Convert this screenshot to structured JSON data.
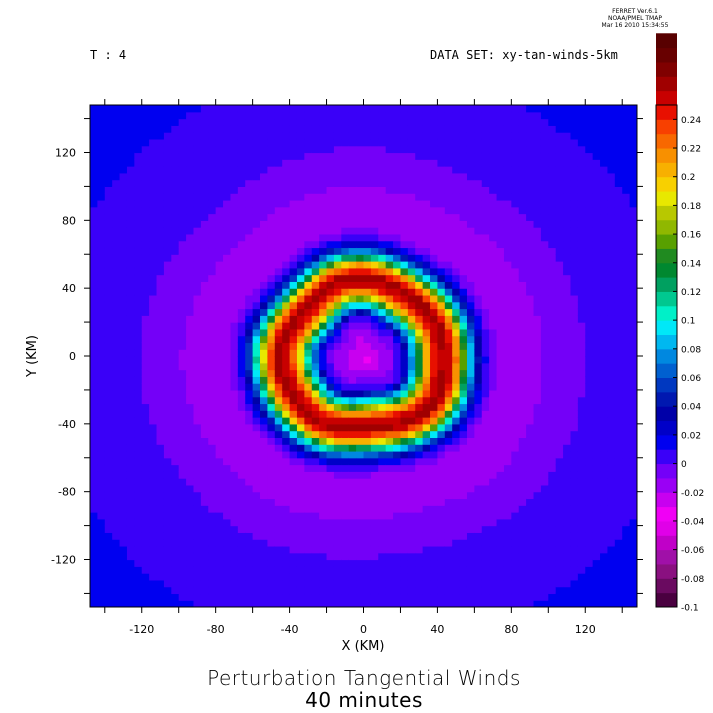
{
  "header": {
    "ferret_lines": [
      "FERRET  Ver.6.1",
      "NOAA/PMEL TMAP",
      "Mar 16 2010 15:34:55"
    ],
    "time_label": "T : 4",
    "dataset_label": "DATA SET: xy-tan-winds-5km"
  },
  "chart_data": {
    "type": "heatmap",
    "title": "Perturbation Tangential Winds",
    "subtitle": "40 minutes",
    "xlabel": "X (KM)",
    "ylabel": "Y (KM)",
    "xlim": [
      -148,
      148
    ],
    "ylim": [
      -148,
      148
    ],
    "xticks": [
      -120,
      -80,
      -40,
      0,
      40,
      80,
      120
    ],
    "yticks": [
      120,
      80,
      40,
      0,
      -40,
      -80,
      -120
    ],
    "colorbar": {
      "min": -0.1,
      "max": 0.25,
      "step": 0.01,
      "labels": [
        0.24,
        0.22,
        0.2,
        0.18,
        0.16,
        0.14,
        0.12,
        0.1,
        0.08,
        0.06,
        0.04,
        0.02,
        0,
        -0.02,
        -0.04,
        -0.06,
        -0.08,
        -0.1
      ],
      "colors_bottom_to_top": [
        "#4a0040",
        "#6a0a60",
        "#8a1080",
        "#a010a8",
        "#c000c8",
        "#e000e8",
        "#f000f5",
        "#c800f0",
        "#9a00f5",
        "#7400f8",
        "#3a00f8",
        "#0000f0",
        "#0000c8",
        "#0000a8",
        "#0018b0",
        "#0038c0",
        "#0060d0",
        "#0088e0",
        "#00b8f0",
        "#00e8f8",
        "#00f0c8",
        "#00c890",
        "#00a060",
        "#008830",
        "#208a20",
        "#58a000",
        "#90b800",
        "#b8c800",
        "#e8e800",
        "#f8d000",
        "#f8b000",
        "#f89000",
        "#f86800",
        "#f84000",
        "#e81000",
        "#c80000",
        "#a00000",
        "#800000",
        "#680000",
        "#580000"
      ]
    },
    "field_description_rings": [
      {
        "radius_km": 0,
        "value": -0.04
      },
      {
        "radius_km": 8,
        "value": -0.03
      },
      {
        "radius_km": 16,
        "value": -0.02
      },
      {
        "radius_km": 22,
        "value": 0.0
      },
      {
        "radius_km": 26,
        "value": 0.05
      },
      {
        "radius_km": 30,
        "value": 0.09
      },
      {
        "radius_km": 34,
        "value": 0.16
      },
      {
        "radius_km": 40,
        "value": 0.21
      },
      {
        "radius_km": 46,
        "value": 0.22
      },
      {
        "radius_km": 52,
        "value": 0.17
      },
      {
        "radius_km": 56,
        "value": 0.1
      },
      {
        "radius_km": 60,
        "value": 0.05
      },
      {
        "radius_km": 64,
        "value": 0.01
      },
      {
        "radius_km": 68,
        "value": -0.01
      },
      {
        "radius_km": 76,
        "value": -0.03
      },
      {
        "radius_km": 90,
        "value": -0.025
      },
      {
        "radius_km": 110,
        "value": -0.015
      },
      {
        "radius_km": 140,
        "value": -0.008
      },
      {
        "radius_km": 200,
        "value": 0.0
      }
    ]
  }
}
